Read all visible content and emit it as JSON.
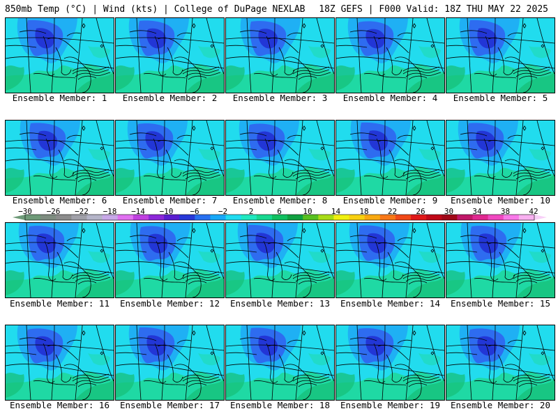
{
  "header": {
    "left": "850mb Temp (°C) | Wind (kts) | College of DuPage NEXLAB",
    "right": "18Z GEFS | F000 Valid: 18Z THU MAY 22 2025"
  },
  "panel_label_prefix": "Ensemble Member: ",
  "members": [
    1,
    2,
    3,
    4,
    5,
    6,
    7,
    8,
    9,
    10,
    11,
    12,
    13,
    14,
    15,
    16,
    17,
    18,
    19,
    20
  ],
  "colorbar": {
    "ticks": [
      "-30",
      "-26",
      "-22",
      "-18",
      "-14",
      "-10",
      "-6",
      "-2",
      "2",
      "6",
      "10",
      "14",
      "18",
      "22",
      "26",
      "30",
      "34",
      "38",
      "42"
    ],
    "colors": [
      "#6e9a78",
      "#7e8c80",
      "#8c8c8c",
      "#a0a0a8",
      "#b4b4c8",
      "#c8a8e8",
      "#e070f0",
      "#c040e0",
      "#8c28d8",
      "#5a1ed0",
      "#2838d8",
      "#2870f0",
      "#18a8f8",
      "#20dcf0",
      "#20e8c0",
      "#18d890",
      "#10c060",
      "#10a040",
      "#58c020",
      "#a8dc18",
      "#f0f010",
      "#f8d010",
      "#f8a810",
      "#f87818",
      "#f04818",
      "#e01818",
      "#c00818",
      "#a00818",
      "#c01868",
      "#e02890",
      "#f048c0",
      "#f878e8",
      "#f8b0f0"
    ]
  },
  "map_colors": {
    "land_light": "#1fd9a4",
    "cyan": "#22dcee",
    "sky": "#1fb0f4",
    "blue": "#2e6cf0",
    "navy": "#2236d6",
    "green": "#17c07a",
    "lines": "#000000"
  }
}
